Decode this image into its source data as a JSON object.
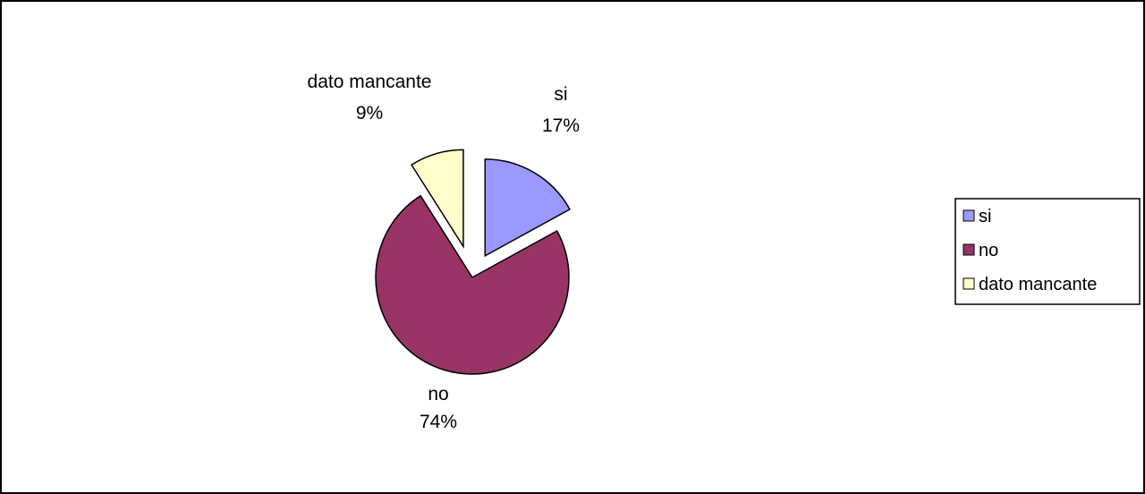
{
  "chart_data": {
    "type": "pie",
    "exploded": true,
    "legend_position": "right",
    "slices": [
      {
        "name": "si",
        "percent": 17,
        "label_pct": "17%",
        "color": "#9999ff"
      },
      {
        "name": "no",
        "percent": 74,
        "label_pct": "74%",
        "color": "#993366"
      },
      {
        "name": "dato mancante",
        "percent": 9,
        "label_pct": "9%",
        "color": "#ffffcc"
      }
    ]
  }
}
